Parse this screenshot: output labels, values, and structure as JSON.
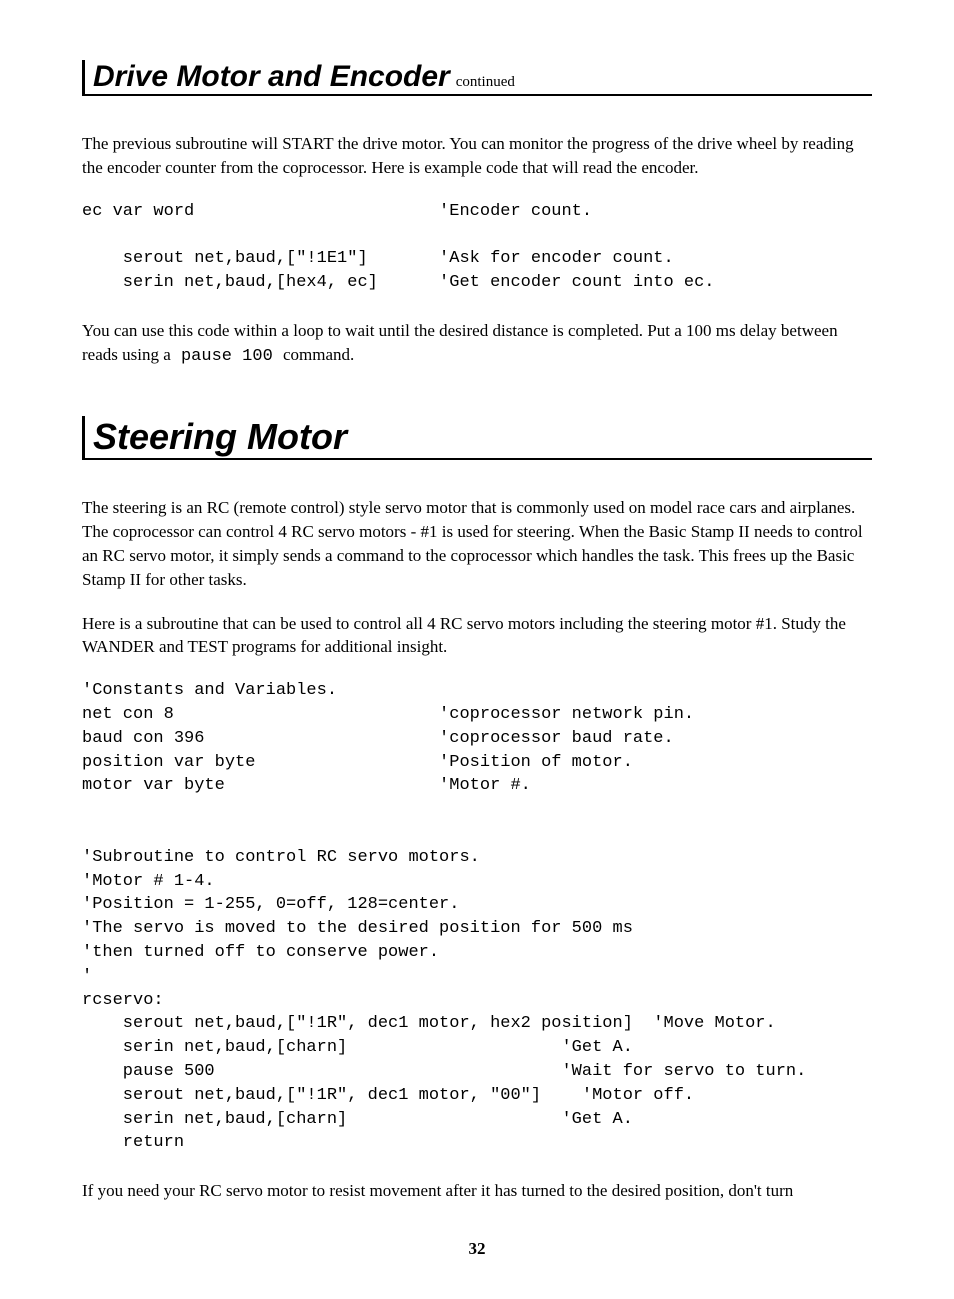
{
  "header1": {
    "title": "Drive Motor and Encoder",
    "continued": "continued"
  },
  "para1": "The previous subroutine will START the drive motor.  You can monitor the progress of the drive wheel by reading the encoder counter from the coprocessor.  Here is example code that will read the encoder.",
  "code1": "ec var word                        'Encoder count.\n\n    serout net,baud,[\"!1E1\"]       'Ask for encoder count.\n    serin net,baud,[hex4, ec]      'Get encoder count into ec.",
  "para2_pre": "You can use this code within a loop to wait until the desired distance is completed.  Put a 100 ms delay between reads using a",
  "para2_code": " pause 100 ",
  "para2_post": " command.",
  "header2": {
    "title": "Steering Motor"
  },
  "para3": "The steering is an RC (remote control) style servo motor that is commonly used on model race cars and airplanes.  The coprocessor can control 4 RC servo motors  -  #1 is used for steering.  When the Basic Stamp II needs to control an RC servo motor, it simply sends a command to the coprocessor which han­dles the task.  This frees up the Basic Stamp II for other tasks.",
  "para4": "Here is a subroutine that can be used to control all 4 RC servo motors including the steering motor #1.  Study the WANDER and TEST programs for additional insight.",
  "code2": "'Constants and Variables.\nnet con 8                          'coprocessor network pin.\nbaud con 396                       'coprocessor baud rate.\nposition var byte                  'Position of motor.\nmotor var byte                     'Motor #.\n\n\n'Subroutine to control RC servo motors.\n'Motor # 1-4.\n'Position = 1-255, 0=off, 128=center.\n'The servo is moved to the desired position for 500 ms\n'then turned off to conserve power.\n'\nrcservo:\n    serout net,baud,[\"!1R\", dec1 motor, hex2 position]  'Move Motor.\n    serin net,baud,[charn]                     'Get A.\n    pause 500                                  'Wait for servo to turn.\n    serout net,baud,[\"!1R\", dec1 motor, \"00\"]    'Motor off.\n    serin net,baud,[charn]                     'Get A.\n    return",
  "para5": "If you need your RC servo motor to resist movement after it has turned to the desired position, don't turn",
  "page_number": "32"
}
